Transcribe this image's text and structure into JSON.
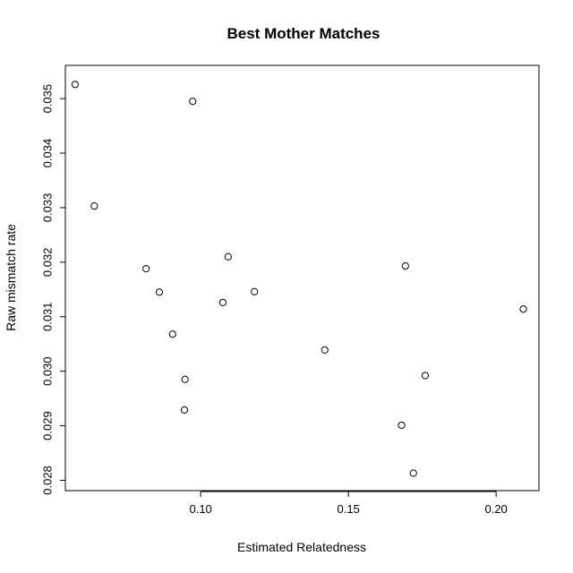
{
  "chart_data": {
    "type": "scatter",
    "title": "Best Mother Matches",
    "xlabel": "Estimated Relatedness",
    "ylabel": "Raw mismatch rate",
    "xlim": [
      0.0542,
      0.2145
    ],
    "ylim": [
      0.02781,
      0.03561
    ],
    "xticks": [
      0.1,
      0.15,
      0.2
    ],
    "xtick_labels": [
      "0.10",
      "0.15",
      "0.20"
    ],
    "yticks": [
      0.028,
      0.029,
      0.03,
      0.031,
      0.032,
      0.033,
      0.034,
      0.035
    ],
    "ytick_labels": [
      "0.028",
      "0.029",
      "0.030",
      "0.031",
      "0.032",
      "0.033",
      "0.034",
      "0.035"
    ],
    "grid": false,
    "legend": "none",
    "points": [
      {
        "x": 0.0575,
        "y": 0.03526
      },
      {
        "x": 0.0973,
        "y": 0.03495
      },
      {
        "x": 0.064,
        "y": 0.03303
      },
      {
        "x": 0.0815,
        "y": 0.03188
      },
      {
        "x": 0.1093,
        "y": 0.0321
      },
      {
        "x": 0.1693,
        "y": 0.03193
      },
      {
        "x": 0.086,
        "y": 0.03145
      },
      {
        "x": 0.1182,
        "y": 0.03146
      },
      {
        "x": 0.1075,
        "y": 0.03126
      },
      {
        "x": 0.2092,
        "y": 0.03114
      },
      {
        "x": 0.0905,
        "y": 0.03068
      },
      {
        "x": 0.142,
        "y": 0.03039
      },
      {
        "x": 0.0947,
        "y": 0.02985
      },
      {
        "x": 0.176,
        "y": 0.02992
      },
      {
        "x": 0.0945,
        "y": 0.02929
      },
      {
        "x": 0.168,
        "y": 0.02901
      },
      {
        "x": 0.172,
        "y": 0.02813
      }
    ]
  }
}
